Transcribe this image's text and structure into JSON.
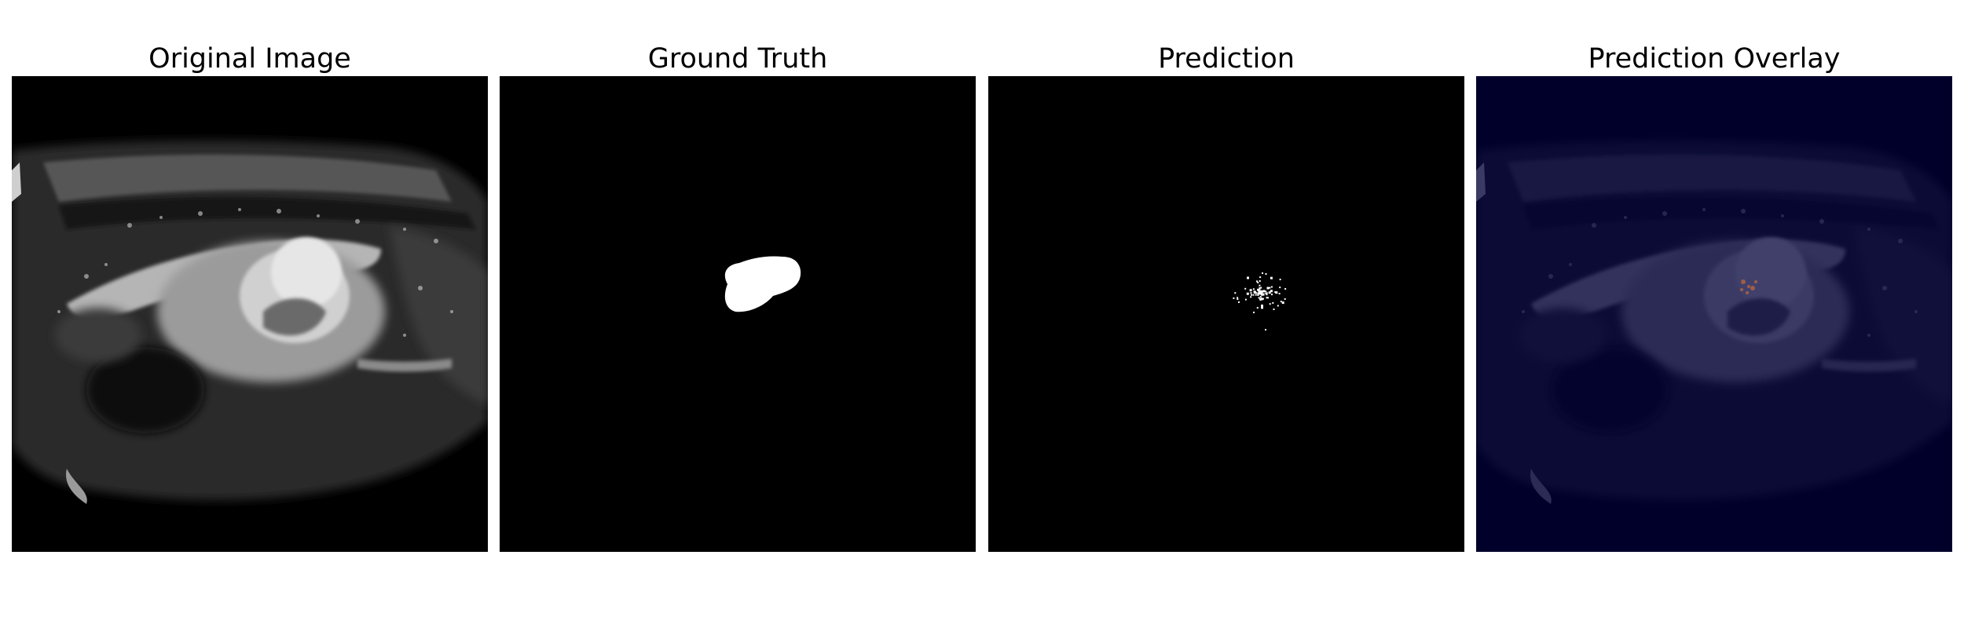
{
  "figure": {
    "panels": [
      {
        "title": "Original Image",
        "kind": "mri-slice",
        "colormap": "gray"
      },
      {
        "title": "Ground Truth",
        "kind": "binary-mask",
        "colormap": "gray"
      },
      {
        "title": "Prediction",
        "kind": "sparse-prediction-mask",
        "colormap": "gray"
      },
      {
        "title": "Prediction Overlay",
        "kind": "overlay",
        "colormap": "jet"
      }
    ],
    "colors": {
      "background": "#ffffff",
      "image_background": "#000000",
      "mask": "#ffffff",
      "overlay_tint": "#00003c",
      "overlay_hot": "#c86a3a"
    }
  }
}
